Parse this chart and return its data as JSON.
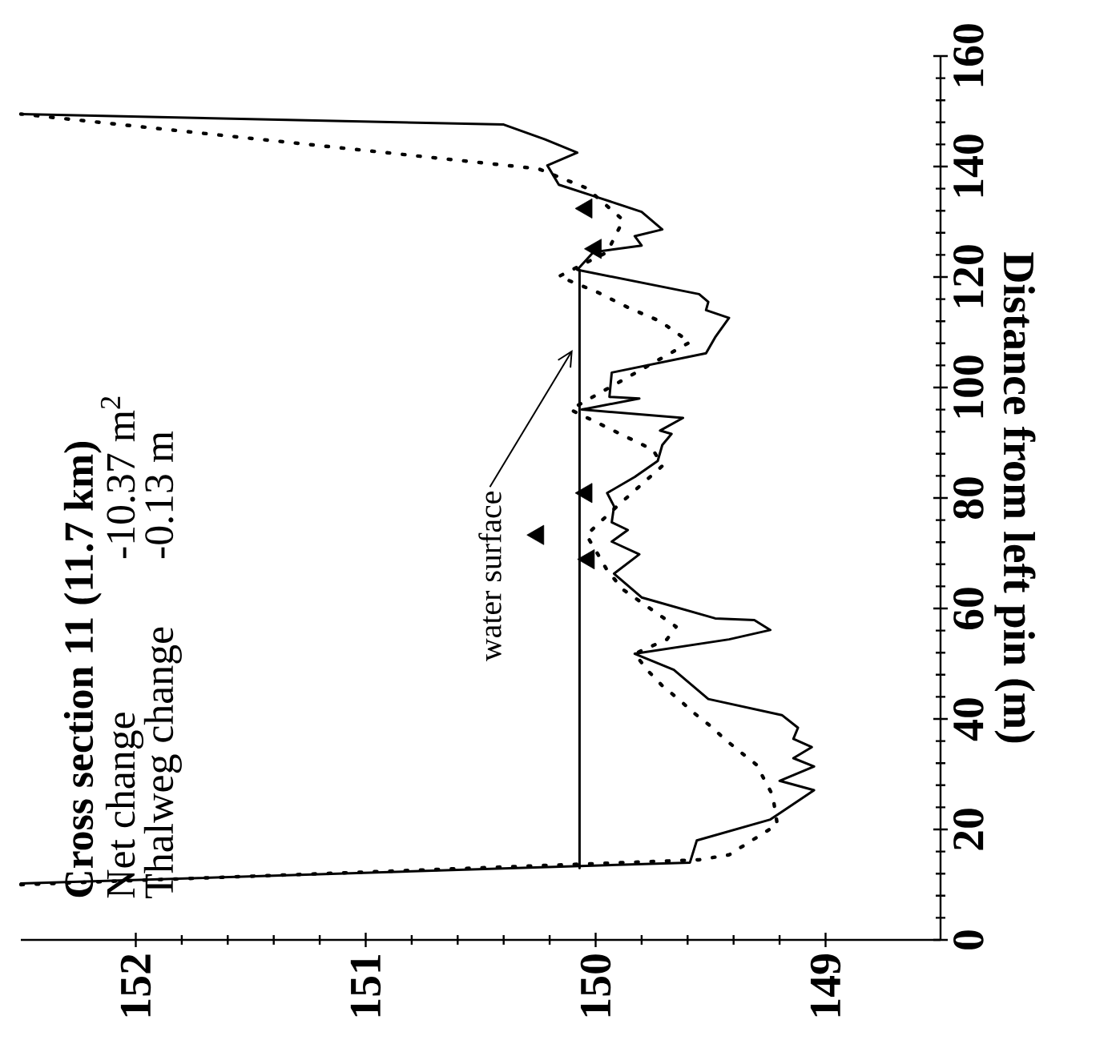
{
  "chart_data": {
    "type": "line",
    "ylabel": "Distance from left pin (m)",
    "xlim": [
      152.5,
      148.5
    ],
    "xticks": [
      152,
      151,
      150,
      149
    ],
    "ylim": [
      0,
      160
    ],
    "yticks": [
      0,
      20,
      40,
      60,
      80,
      100,
      120,
      140,
      160
    ],
    "grid": false,
    "annotations": [
      "Cross section 11 (11.7 km)",
      "Net change",
      "-10.37 m$^{2}$",
      "Thalweg change",
      "-0.13 m",
      {
        "text": "water surface",
        "x": 150.1,
        "y": 106.8
      }
    ],
    "series": [
      {
        "color": "#000000",
        "line_style": "solid",
        "values": [
          10.2,
          14.0,
          18.0,
          21.8,
          27.1,
          28.8,
          31.4,
          32.9,
          34.9,
          36.4,
          38.4,
          40.7,
          43.6,
          48.9,
          51.8,
          54.4,
          56.1,
          57.9,
          58.2,
          62.0,
          66.3,
          69.8,
          72.1,
          74.2,
          75.6,
          78.5,
          80.9,
          83.8,
          86.7,
          89.6,
          91.6,
          92.2,
          94.5,
          96.0,
          98.0,
          98.3,
          102.7,
          106.2,
          109.1,
          112.0,
          112.6,
          114.0,
          115.5,
          116.9,
          121.3,
          124.5,
          125.7,
          127.4,
          128.6,
          131.8,
          134.4,
          136.7,
          140.2,
          142.5,
          144.9,
          147.6,
          149.5
        ],
        "x": [
          152.5,
          149.59,
          149.56,
          149.24,
          149.05,
          149.2,
          149.05,
          149.14,
          149.06,
          149.14,
          149.12,
          149.19,
          149.51,
          149.66,
          149.83,
          149.42,
          149.24,
          149.31,
          149.48,
          149.8,
          149.92,
          149.81,
          149.93,
          149.86,
          149.93,
          149.92,
          149.95,
          149.83,
          149.73,
          149.71,
          149.67,
          149.72,
          149.62,
          150.06,
          149.81,
          149.94,
          149.93,
          149.52,
          149.48,
          149.43,
          149.42,
          149.52,
          149.51,
          149.55,
          150.08,
          150.01,
          149.8,
          149.83,
          149.71,
          149.8,
          149.99,
          150.16,
          150.21,
          150.08,
          150.22,
          150.4,
          152.5
        ]
      },
      {
        "color": "#000000",
        "line_style": "dotted",
        "values": [
          10.0,
          14.5,
          15.4,
          17.5,
          20.9,
          26.2,
          28.5,
          31.7,
          34.0,
          36.4,
          38.7,
          41.0,
          43.6,
          46.0,
          48.6,
          51.8,
          54.4,
          56.7,
          63.4,
          66.9,
          69.8,
          73.3,
          78.0,
          80.6,
          85.8,
          88.7,
          96.0,
          108.2,
          112.0,
          114.3,
          117.2,
          120.1,
          124.5,
          130.3,
          136.1,
          139.6,
          149.5
        ],
        "x": [
          152.5,
          149.55,
          149.42,
          149.34,
          149.21,
          149.23,
          149.26,
          149.3,
          149.37,
          149.44,
          149.5,
          149.57,
          149.64,
          149.71,
          149.77,
          149.83,
          149.69,
          149.65,
          149.88,
          149.95,
          149.99,
          150.04,
          149.92,
          149.85,
          149.71,
          149.75,
          150.11,
          149.59,
          149.72,
          149.85,
          149.99,
          150.16,
          149.95,
          149.88,
          150.04,
          150.25,
          152.5
        ]
      },
      {
        "color": "#000000",
        "line_style": "solid",
        "values": [
          13.0,
          121.3
        ],
        "x": [
          150.07,
          150.07
        ]
      },
      {
        "type": "scatter",
        "color": "#000000",
        "marker": "triangle",
        "values": [
          68.9,
          73.3,
          80.9,
          125.1,
          132.4
        ],
        "x": [
          150.03,
          150.25,
          150.04,
          150.0,
          150.04
        ]
      }
    ]
  }
}
